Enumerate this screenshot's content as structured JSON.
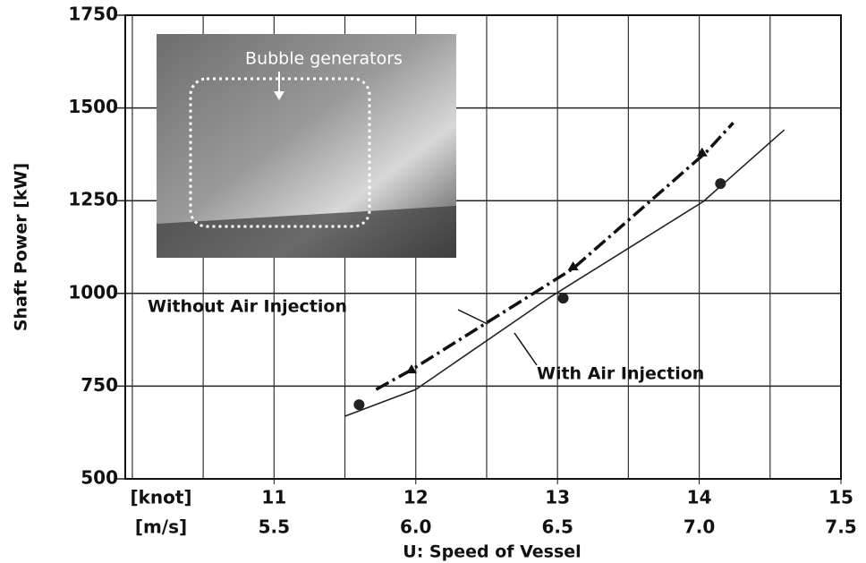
{
  "chart_data": {
    "type": "line",
    "y_label": "Shaft Power [kW]",
    "x_label": "U: Speed of Vessel",
    "x_unit": "[knot]",
    "x2_unit": "[m/s]",
    "inset_label": "Bubble generators",
    "xlim": [
      9.95,
      15.0
    ],
    "xticks": [
      11,
      12,
      13,
      14,
      15
    ],
    "xgrid": [
      10,
      10.5,
      11,
      11.5,
      12,
      12.5,
      13,
      13.5,
      14,
      14.5,
      15
    ],
    "x2lim": [
      4.975,
      7.5
    ],
    "x2ticks": [
      5.5,
      {
        "value": 6,
        "label": "6.0"
      },
      6.5,
      {
        "value": 7,
        "label": "7.0"
      },
      7.5
    ],
    "ylim": [
      500,
      1750
    ],
    "yticks": [
      500,
      750,
      1000,
      1250,
      1500,
      1750
    ],
    "grid": true,
    "series": [
      {
        "name": "Without Air Injection",
        "color": "#111111",
        "style": "dashdot",
        "x": [
          11.72,
          11.97,
          13.11,
          14.05,
          14.24
        ],
        "values": [
          741,
          794,
          1067,
          1381,
          1460
        ],
        "marker_x": [
          11.97,
          13.11,
          14.02
        ],
        "marker_values": [
          794,
          1072,
          1379
        ]
      },
      {
        "name": "With Air Injection",
        "color": "#222222",
        "style": "solid",
        "x": [
          11.5,
          12.0,
          12.94,
          14.03,
          14.6
        ],
        "values": [
          669,
          741,
          988,
          1248,
          1441
        ],
        "marker_x": [
          11.6,
          13.04,
          14.15
        ],
        "marker_values": [
          700,
          987,
          1296
        ]
      }
    ]
  }
}
